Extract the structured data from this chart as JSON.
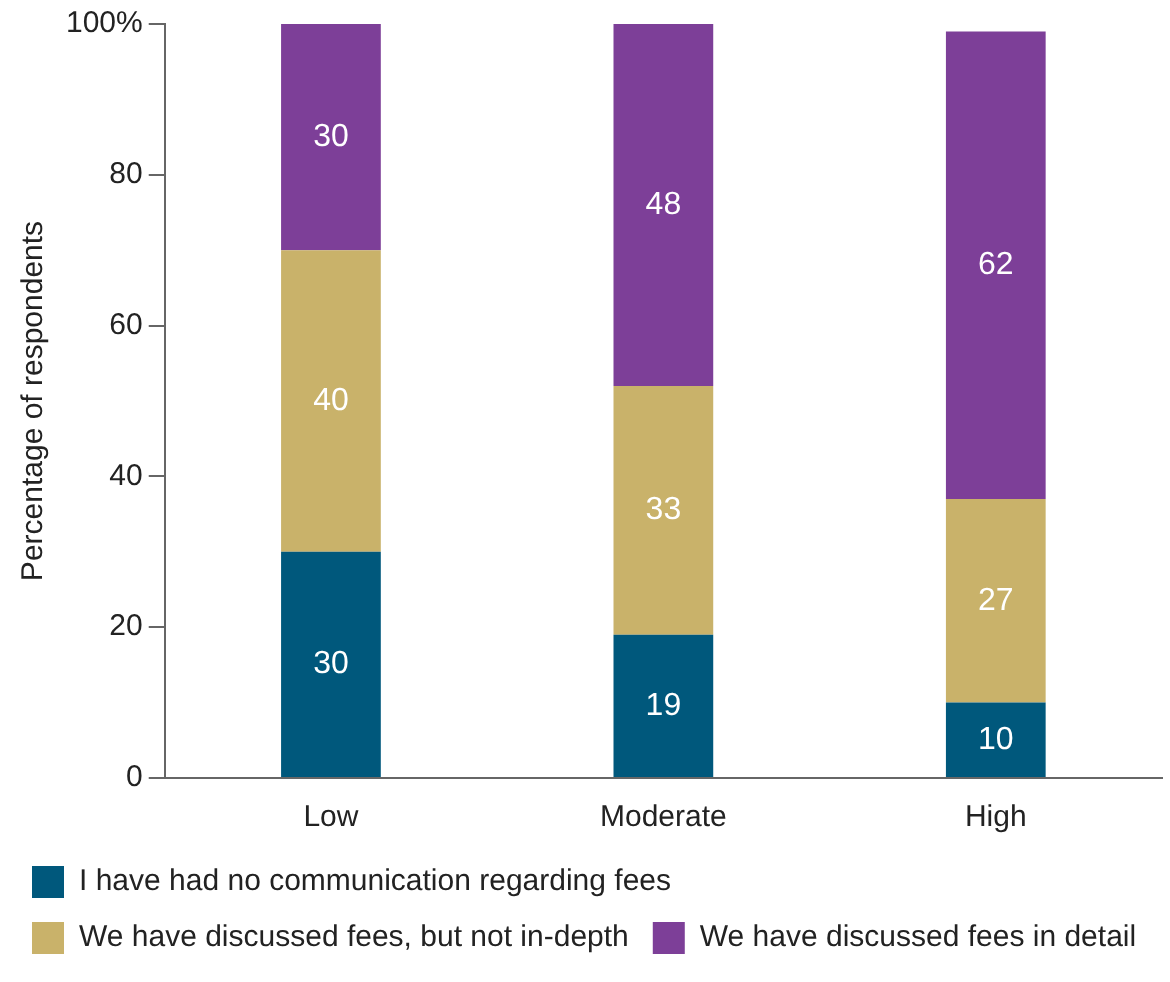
{
  "chart_data": {
    "type": "bar",
    "stacked": true,
    "ylabel": "Percentage of respondents",
    "categories": [
      "Low",
      "Moderate",
      "High"
    ],
    "series": [
      {
        "name": "I have had no communication regarding fees",
        "color": "#00587c",
        "values": [
          30,
          19,
          10
        ]
      },
      {
        "name": "We have discussed fees, but not in-depth",
        "color": "#c9b26a",
        "values": [
          40,
          33,
          27
        ]
      },
      {
        "name": "We have discussed fees in detail",
        "color": "#7d3f98",
        "values": [
          30,
          48,
          62
        ]
      }
    ],
    "ylim": [
      0,
      100
    ],
    "yticks": [
      0,
      20,
      40,
      60,
      80,
      {
        "value": 100,
        "label": "100%"
      }
    ],
    "grid": false,
    "legend": "bottom",
    "data_labels": true
  }
}
